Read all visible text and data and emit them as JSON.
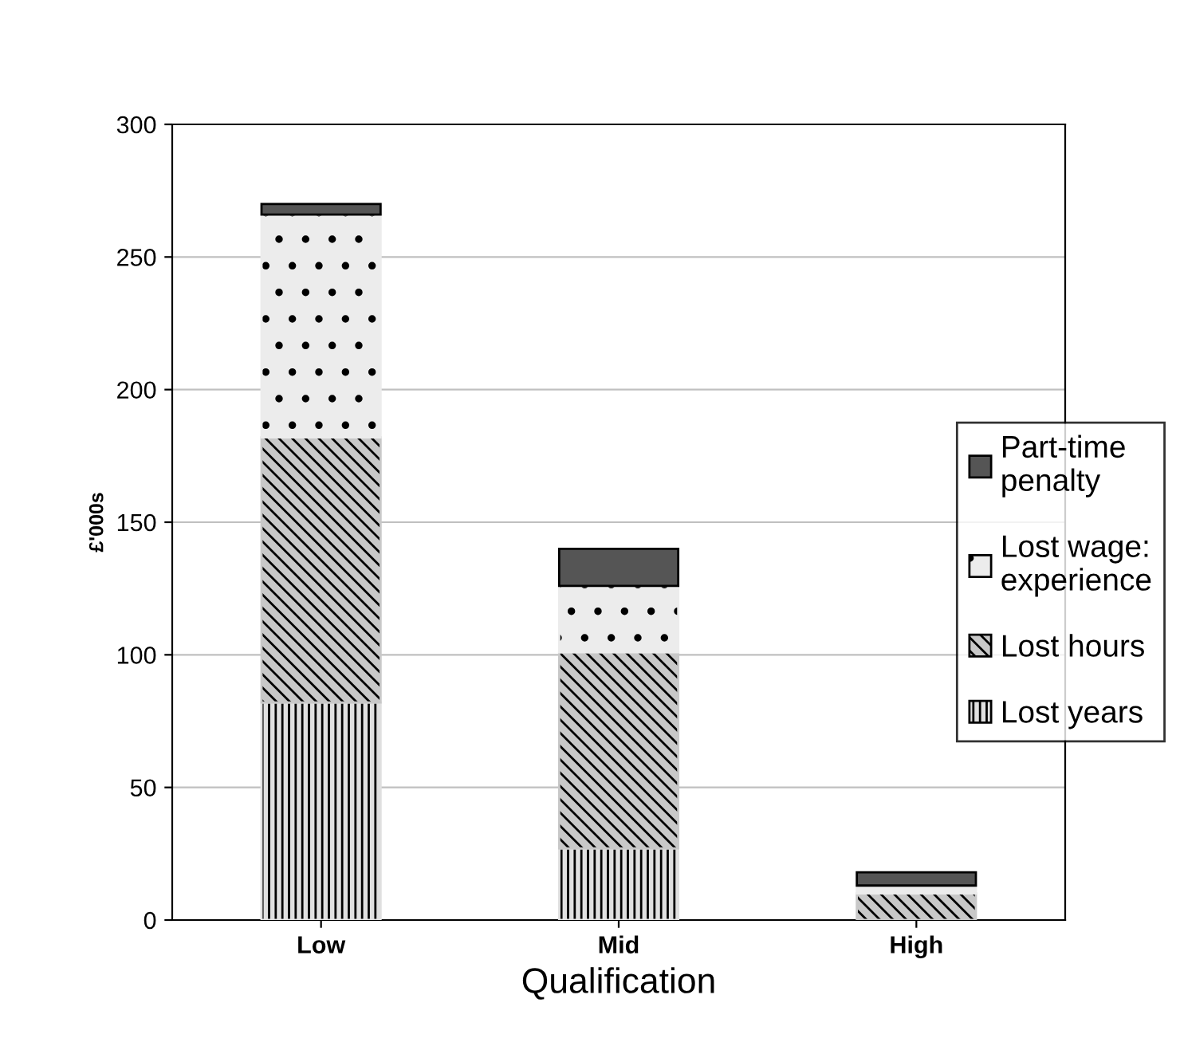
{
  "chart_data": {
    "type": "bar",
    "stacked": true,
    "xlabel": "Qualification",
    "ylabel": "£'000s",
    "categories": [
      "Low",
      "Mid",
      "High"
    ],
    "series": [
      {
        "name": "Lost years",
        "color": "#e0e0e0",
        "values": [
          82,
          27,
          0
        ]
      },
      {
        "name": "Lost hours",
        "color": "#c8c8c8",
        "values": [
          100,
          74,
          10
        ]
      },
      {
        "name": "Lost wage: experience",
        "color": "#ececec",
        "values": [
          84,
          25,
          3
        ]
      },
      {
        "name": "Part-time penalty",
        "color": "#555555",
        "values": [
          4,
          14,
          5
        ]
      }
    ],
    "ylim": [
      0,
      300
    ],
    "yticks": [
      0,
      50,
      100,
      150,
      200,
      250,
      300
    ],
    "grid": "y",
    "legend": "right"
  }
}
